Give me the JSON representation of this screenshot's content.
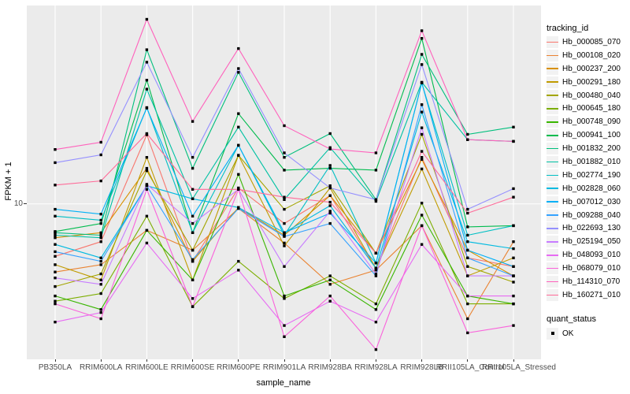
{
  "figure": {
    "y_axis": {
      "title": "FPKM + 1",
      "tick_labels": [
        "10"
      ]
    },
    "x_axis": {
      "title": "sample_name"
    },
    "colors": {
      "panel_background": "#EBEBEB",
      "gridline": "#FFFFFF",
      "axis_text": "#4D4D4D",
      "tick_mark": "#333333",
      "marker": "#000000",
      "legend_key_background": "#F2F2F2"
    },
    "legends": {
      "tracking": {
        "title": "tracking_id"
      },
      "quant": {
        "title": "quant_status",
        "entries": [
          {
            "label": "OK",
            "marker": "black-square"
          }
        ]
      }
    }
  },
  "chart_data": {
    "type": "line",
    "title": "",
    "xlabel": "sample_name",
    "ylabel": "FPKM + 1",
    "y_scale": "log10",
    "ylim": [
      1.7,
      96
    ],
    "grid": "white on gray panel, vertical line per category, horizontal line at y=10",
    "legend_position": "right",
    "point_marker": "filled black square (quant_status = OK)",
    "categories": [
      "PB350LA",
      "RRIM600LA",
      "RRIM600LE",
      "RRIM600SE",
      "RRIM600PE",
      "RRIM901LA",
      "RRIM928BA",
      "RRIM928LA",
      "RRIM928LB",
      "RRII105LA_Control",
      "RRII105LA_Stressed"
    ],
    "series": [
      {
        "name": "Hb_000085_070",
        "color": "#F8766D",
        "values": [
          5.5,
          6.5,
          22,
          5.2,
          12,
          8.0,
          11,
          4.8,
          17,
          5.4,
          4.9
        ]
      },
      {
        "name": "Hb_000108_020",
        "color": "#EA8331",
        "values": [
          4.6,
          5.0,
          7.4,
          5.9,
          9.5,
          6.4,
          4.0,
          4.7,
          7.8,
          2.7,
          6.5
        ]
      },
      {
        "name": "Hb_000237_200",
        "color": "#D89000",
        "values": [
          6.8,
          7.2,
          15,
          5.2,
          9.6,
          7.0,
          11,
          5.7,
          16.6,
          5.9,
          4.4
        ]
      },
      {
        "name": "Hb_000291_180",
        "color": "#C09B00",
        "values": [
          5.0,
          4.2,
          17,
          4.2,
          17.4,
          6.2,
          12,
          4.8,
          14.9,
          4.4,
          5.4
        ]
      },
      {
        "name": "Hb_000480_040",
        "color": "#A3A500",
        "values": [
          3.9,
          4.5,
          14.6,
          5.9,
          17.4,
          9.4,
          12.3,
          5.7,
          22.1,
          4.9,
          4.1
        ]
      },
      {
        "name": "Hb_000645_180",
        "color": "#7CAE00",
        "values": [
          3.3,
          3.6,
          8.7,
          3.1,
          5.2,
          3.4,
          4.4,
          3.2,
          10.1,
          3.2,
          3.2
        ]
      },
      {
        "name": "Hb_000748_090",
        "color": "#39B600",
        "values": [
          3.5,
          3.0,
          7.4,
          4.2,
          14,
          3.5,
          4.2,
          3.0,
          8.8,
          3.5,
          3.2
        ]
      },
      {
        "name": "Hb_000941_100",
        "color": "#00BB4E",
        "values": [
          7.3,
          8.0,
          41,
          7.2,
          28,
          14.7,
          15,
          14.7,
          66,
          7.7,
          7.8
        ]
      },
      {
        "name": "Hb_001832_200",
        "color": "#00BF7D",
        "values": [
          7.2,
          7.0,
          58,
          15,
          44.8,
          17,
          22.3,
          10.5,
          55,
          22.1,
          24
        ]
      },
      {
        "name": "Hb_001882_010",
        "color": "#00C1A3",
        "values": [
          7.0,
          6.8,
          37,
          10.6,
          24,
          10.5,
          19,
          10.3,
          40,
          20.8,
          20.4
        ]
      },
      {
        "name": "Hb_002774_190",
        "color": "#00BFC4",
        "values": [
          8.7,
          8.3,
          30,
          7.2,
          19.5,
          7.0,
          15.5,
          5.1,
          39.7,
          7.0,
          7.8
        ]
      },
      {
        "name": "Hb_002828_060",
        "color": "#00BAE0",
        "values": [
          6.3,
          5.4,
          12.3,
          10.6,
          9.6,
          7.2,
          9.8,
          4.8,
          28.5,
          6.5,
          6.0
        ]
      },
      {
        "name": "Hb_007012_030",
        "color": "#00B0F6",
        "values": [
          9.4,
          8.9,
          29.8,
          8.7,
          19.5,
          7.2,
          9.0,
          5.1,
          39.8,
          5.9,
          4.9
        ]
      },
      {
        "name": "Hb_009288_040",
        "color": "#35A2FF",
        "values": [
          5.8,
          5.2,
          12.3,
          5.3,
          9.5,
          6.9,
          8.0,
          4.4,
          31,
          5.4,
          4.4
        ]
      },
      {
        "name": "Hb_022693_130",
        "color": "#9590FF",
        "values": [
          16,
          17.5,
          50.3,
          17,
          46.8,
          17.9,
          12,
          10.5,
          49,
          9.4,
          11.9
        ]
      },
      {
        "name": "Hb_025194_050",
        "color": "#C77CFF",
        "values": [
          4.3,
          4.0,
          12.5,
          8.0,
          11.8,
          4.9,
          9.2,
          4.5,
          23.8,
          4.4,
          4.4
        ]
      },
      {
        "name": "Hb_048093_010",
        "color": "#E76BF3",
        "values": [
          2.6,
          2.9,
          6.4,
          3.4,
          4.7,
          2.5,
          3.3,
          2.6,
          6.3,
          3.5,
          3.5
        ]
      },
      {
        "name": "Hb_068079_010",
        "color": "#FA62DB",
        "values": [
          3.2,
          2.7,
          11.8,
          3.1,
          11.8,
          2.2,
          3.5,
          1.9,
          7.8,
          2.3,
          2.5
        ]
      },
      {
        "name": "Hb_114310_070",
        "color": "#FF62BC",
        "values": [
          18.6,
          20.2,
          82,
          25.6,
          58.8,
          24.4,
          18.7,
          17.9,
          72,
          20.8,
          20.4
        ]
      },
      {
        "name": "Hb_160271_010",
        "color": "#FF6A98",
        "values": [
          12.4,
          13,
          22.3,
          11.8,
          11.8,
          10.8,
          10.2,
          5.7,
          18.2,
          9.0,
          10.8
        ]
      }
    ]
  }
}
